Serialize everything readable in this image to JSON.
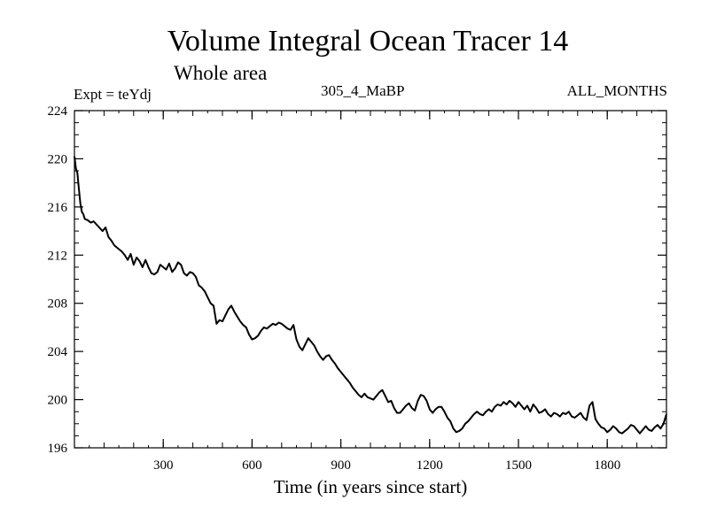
{
  "header": {
    "title": "Volume Integral Ocean Tracer 14",
    "subtitle": "Whole area",
    "experiment": "Expt = teYdj",
    "period": "305_4_MaBP",
    "months": "ALL_MONTHS"
  },
  "chart_data": {
    "type": "line",
    "title": "Volume Integral Ocean Tracer 14",
    "subtitle": "Whole area",
    "xlabel": "Time (in years since start)",
    "ylabel": "",
    "xlim": [
      0,
      2000
    ],
    "ylim": [
      196,
      224
    ],
    "x_ticks": [
      300,
      600,
      900,
      1200,
      1500,
      1800
    ],
    "y_ticks": [
      196,
      200,
      204,
      208,
      212,
      216,
      220,
      224
    ],
    "series": [
      {
        "name": "Tracer 14",
        "x": [
          0,
          5,
          10,
          15,
          20,
          25,
          30,
          35,
          45,
          55,
          65,
          80,
          95,
          105,
          115,
          125,
          135,
          150,
          160,
          170,
          180,
          190,
          200,
          210,
          220,
          230,
          240,
          250,
          260,
          270,
          280,
          290,
          300,
          310,
          320,
          330,
          340,
          350,
          360,
          370,
          380,
          390,
          400,
          410,
          420,
          430,
          440,
          450,
          460,
          470,
          480,
          490,
          500,
          510,
          520,
          530,
          540,
          550,
          560,
          570,
          580,
          590,
          600,
          610,
          620,
          630,
          640,
          650,
          660,
          670,
          680,
          690,
          700,
          710,
          720,
          730,
          740,
          750,
          760,
          770,
          780,
          790,
          800,
          810,
          820,
          830,
          840,
          850,
          860,
          870,
          880,
          890,
          900,
          910,
          920,
          930,
          940,
          950,
          960,
          970,
          980,
          990,
          1000,
          1010,
          1020,
          1030,
          1040,
          1050,
          1060,
          1070,
          1080,
          1090,
          1100,
          1110,
          1120,
          1130,
          1140,
          1150,
          1160,
          1170,
          1180,
          1190,
          1200,
          1210,
          1220,
          1230,
          1240,
          1250,
          1260,
          1270,
          1280,
          1290,
          1300,
          1310,
          1320,
          1330,
          1340,
          1350,
          1360,
          1370,
          1380,
          1390,
          1400,
          1410,
          1420,
          1430,
          1440,
          1450,
          1460,
          1470,
          1480,
          1490,
          1500,
          1510,
          1520,
          1530,
          1540,
          1550,
          1560,
          1570,
          1580,
          1590,
          1600,
          1610,
          1620,
          1630,
          1640,
          1650,
          1660,
          1670,
          1680,
          1690,
          1700,
          1710,
          1720,
          1730,
          1740,
          1750,
          1760,
          1770,
          1780,
          1790,
          1800,
          1810,
          1820,
          1830,
          1840,
          1850,
          1860,
          1870,
          1880,
          1890,
          1900,
          1910,
          1920,
          1930,
          1940,
          1950,
          1960,
          1970,
          1980,
          1990,
          2000
        ],
        "values": [
          220.2,
          219.2,
          218.8,
          217.5,
          216.3,
          215.6,
          215.4,
          215.0,
          214.9,
          214.7,
          214.8,
          214.4,
          214.0,
          214.3,
          213.5,
          213.2,
          212.8,
          212.5,
          212.3,
          212.0,
          211.6,
          212.1,
          211.2,
          211.8,
          211.5,
          211.0,
          211.6,
          211.0,
          210.5,
          210.4,
          210.6,
          211.2,
          211.0,
          210.8,
          211.3,
          210.6,
          210.9,
          211.4,
          211.2,
          210.5,
          210.3,
          210.6,
          210.5,
          210.2,
          209.5,
          209.3,
          209.0,
          208.5,
          208.0,
          207.8,
          206.3,
          206.6,
          206.5,
          207.0,
          207.5,
          207.8,
          207.3,
          206.9,
          206.5,
          206.2,
          206.0,
          205.4,
          205.0,
          205.1,
          205.3,
          205.7,
          206.0,
          205.9,
          206.1,
          206.3,
          206.2,
          206.4,
          206.3,
          206.1,
          205.9,
          205.8,
          206.2,
          205.0,
          204.4,
          204.1,
          204.6,
          205.1,
          204.8,
          204.5,
          204.0,
          203.6,
          203.3,
          203.6,
          203.7,
          203.3,
          203.0,
          202.6,
          202.3,
          202.0,
          201.7,
          201.4,
          201.0,
          200.7,
          200.4,
          200.2,
          200.5,
          200.2,
          200.1,
          200.0,
          200.3,
          200.6,
          200.8,
          200.3,
          199.8,
          199.9,
          199.3,
          198.9,
          198.9,
          199.2,
          199.5,
          199.7,
          199.3,
          199.1,
          199.9,
          200.4,
          200.3,
          199.9,
          199.2,
          198.9,
          199.2,
          199.4,
          199.4,
          199.0,
          198.5,
          198.2,
          197.6,
          197.3,
          197.4,
          197.6,
          198.0,
          198.2,
          198.5,
          198.8,
          199.0,
          198.8,
          198.7,
          199.0,
          199.2,
          199.0,
          199.4,
          199.6,
          199.5,
          199.8,
          199.6,
          199.9,
          199.7,
          199.4,
          199.8,
          199.5,
          199.2,
          199.5,
          199.0,
          199.6,
          199.3,
          198.9,
          199.0,
          199.2,
          198.8,
          198.6,
          198.9,
          198.8,
          198.6,
          198.9,
          198.8,
          199.0,
          198.6,
          198.5,
          198.7,
          198.9,
          198.5,
          198.3,
          199.5,
          199.8,
          198.4,
          198.0,
          197.7,
          197.6,
          197.3,
          197.5,
          197.8,
          197.6,
          197.3,
          197.2,
          197.4,
          197.6,
          197.9,
          197.8,
          197.5,
          197.2,
          197.5,
          197.8,
          197.5,
          197.4,
          197.7,
          197.9,
          197.6,
          198.0,
          198.8
        ]
      }
    ]
  }
}
